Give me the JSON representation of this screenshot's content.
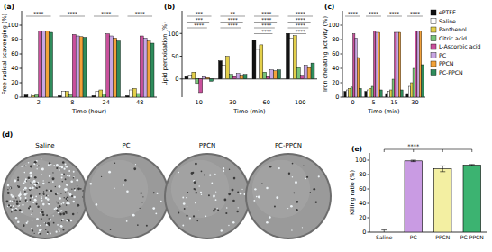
{
  "chart_data": [
    {
      "type": "bar",
      "panel": "(a)",
      "x_label": "Time (hour)",
      "y_label": "Free radical scavenging (%)",
      "categories": [
        "2",
        "8",
        "24",
        "48"
      ],
      "ylim": [
        0,
        120
      ],
      "yticks": [
        0,
        20,
        40,
        60,
        80,
        100
      ],
      "annotations": [
        [
          "****"
        ],
        [
          "****"
        ],
        [
          "****"
        ],
        [
          "****"
        ]
      ],
      "series": [
        {
          "color": "#111111",
          "values": [
            3,
            2,
            2,
            2
          ]
        },
        {
          "color": "#ffffff",
          "values": [
            4,
            8,
            8,
            10
          ]
        },
        {
          "color": "#e3cf4a",
          "values": [
            2,
            8,
            10,
            12
          ]
        },
        {
          "color": "#78c478",
          "values": [
            3,
            3,
            4,
            5
          ]
        },
        {
          "color": "#c9509c",
          "values": [
            92,
            87,
            88,
            85
          ]
        },
        {
          "color": "#c7a6e3",
          "values": [
            92,
            85,
            85,
            82
          ]
        },
        {
          "color": "#f2a23a",
          "values": [
            92,
            84,
            82,
            78
          ]
        },
        {
          "color": "#2f8c5c",
          "values": [
            90,
            83,
            78,
            75
          ]
        }
      ]
    },
    {
      "type": "bar",
      "panel": "(b)",
      "x_label": "Time (min)",
      "y_label": "Lipid peroxidation (%)",
      "categories": [
        "10",
        "30",
        "60",
        "100"
      ],
      "ylim": [
        -40,
        150
      ],
      "yticks": [
        0,
        50,
        100
      ],
      "annotations": [
        [
          "***",
          "***",
          "****"
        ],
        [
          "**",
          "****",
          "****"
        ],
        [
          "****",
          "****",
          "****",
          "****"
        ],
        [
          "****",
          "****",
          "****",
          "****"
        ]
      ],
      "series": [
        {
          "color": "#111111",
          "values": [
            5,
            40,
            85,
            100
          ]
        },
        {
          "color": "#ffffff",
          "values": [
            8,
            30,
            65,
            90
          ]
        },
        {
          "color": "#e3cf4a",
          "values": [
            15,
            50,
            75,
            95
          ]
        },
        {
          "color": "#78c478",
          "values": [
            -10,
            10,
            15,
            25
          ]
        },
        {
          "color": "#c9509c",
          "values": [
            -30,
            5,
            5,
            8
          ]
        },
        {
          "color": "#c7a6e3",
          "values": [
            5,
            12,
            20,
            30
          ]
        },
        {
          "color": "#f2a23a",
          "values": [
            3,
            8,
            18,
            25
          ]
        },
        {
          "color": "#2f8c5c",
          "values": [
            -5,
            10,
            20,
            35
          ]
        }
      ]
    },
    {
      "type": "bar",
      "panel": "(c)",
      "x_label": "Time (min)",
      "y_label": "Iron chelating activity (%)",
      "categories": [
        "0",
        "5",
        "15",
        "30"
      ],
      "ylim": [
        0,
        120
      ],
      "yticks": [
        0,
        20,
        40,
        60,
        80,
        100
      ],
      "legend": "right",
      "annotations": [
        [
          "****"
        ],
        [
          "****"
        ],
        [
          "****"
        ],
        [
          "****"
        ]
      ],
      "series": [
        {
          "name": "ePTFE",
          "color": "#111111",
          "values": [
            8,
            8,
            5,
            5
          ]
        },
        {
          "name": "Saline",
          "color": "#ffffff",
          "values": [
            10,
            10,
            8,
            15
          ]
        },
        {
          "name": "Panthenol",
          "color": "#e3cf4a",
          "values": [
            12,
            12,
            10,
            20
          ]
        },
        {
          "name": "Citric acid",
          "color": "#78c478",
          "values": [
            14,
            15,
            25,
            40
          ]
        },
        {
          "name": "L-Ascorbic acid",
          "color": "#c9509c",
          "values": [
            88,
            92,
            90,
            92
          ]
        },
        {
          "name": "PC",
          "color": "#c7a6e3",
          "values": [
            82,
            90,
            90,
            92
          ]
        },
        {
          "name": "PPCN",
          "color": "#f2a23a",
          "values": [
            55,
            90,
            90,
            92
          ]
        },
        {
          "name": "PC-PPCN",
          "color": "#2f8c5c",
          "values": [
            12,
            10,
            10,
            45
          ]
        }
      ]
    },
    {
      "type": "image",
      "panel": "(d)",
      "labels": [
        "Saline",
        "PC",
        "PPCN",
        "PC-PPCN"
      ]
    },
    {
      "type": "bar",
      "panel": "(e)",
      "y_label": "Killing ratio (%)",
      "categories": [
        "Saline",
        "PC",
        "PPCN",
        "PC-PPCN"
      ],
      "values": [
        0,
        99,
        88,
        93
      ],
      "errors": [
        3,
        1,
        4,
        1
      ],
      "colors": [
        "#ffffff",
        "#c99be3",
        "#f3efa2",
        "#3cb371"
      ],
      "ylim": [
        0,
        110
      ],
      "yticks": [
        0,
        20,
        40,
        60,
        80,
        100
      ],
      "annotations": [
        "****"
      ]
    }
  ]
}
